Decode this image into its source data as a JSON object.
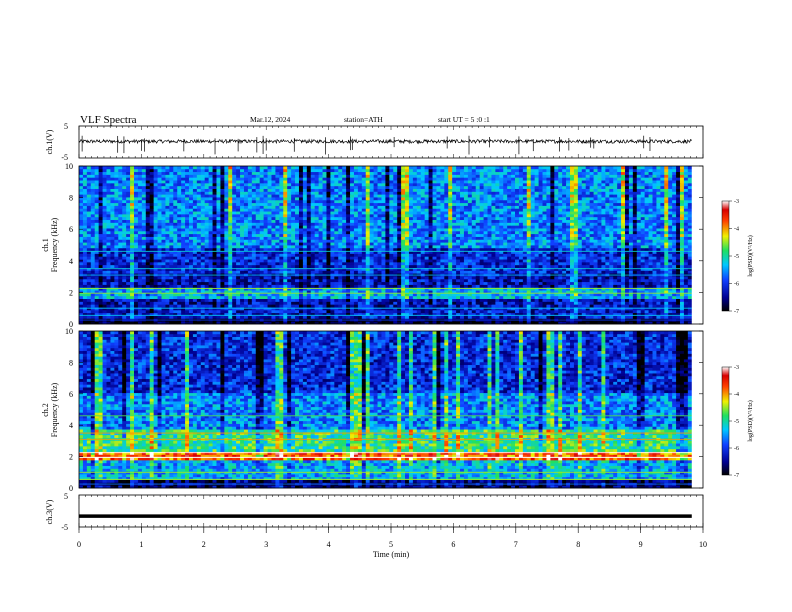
{
  "header": {
    "title": "VLF  Spectra",
    "date": "Mar.12, 2024",
    "station": "station=ATH",
    "start": "start  UT  =    5  :0  :1"
  },
  "chart_data": [
    {
      "type": "line",
      "id": "ch1-waveform",
      "ylabel": "ch.1(V)",
      "ylim": [
        -5,
        5
      ],
      "yticks": [
        "5",
        "-5"
      ],
      "xlim": [
        0,
        10
      ],
      "trace_baseline_v": 0.2,
      "trace_noise_v": 0.55,
      "spikes_min": [
        0.05,
        0.62,
        0.72,
        1.0,
        1.05,
        1.68,
        2.18,
        2.55,
        2.85,
        2.95,
        3.0,
        3.45,
        3.95,
        4.35,
        4.38,
        5.05,
        5.9,
        6.25,
        6.58,
        7.05,
        7.28,
        7.7,
        7.85,
        8.2,
        8.25,
        9.05,
        9.15
      ]
    },
    {
      "type": "heatmap",
      "id": "ch1-spectrogram",
      "ylabel": "ch.1\nFrequency  (kHz)",
      "ylim": [
        0,
        10
      ],
      "yticks": [
        "0",
        "2",
        "4",
        "6",
        "8",
        "10"
      ],
      "xlim": [
        0,
        9.82
      ],
      "colorbar": {
        "label": "log(PSD)(V²/Hz)",
        "range": [
          -7,
          -3
        ],
        "ticks": [
          "-3",
          "-4",
          "-5",
          "-6",
          "-7"
        ]
      },
      "bands_khz": [
        {
          "f": [
            0.0,
            0.4
          ],
          "level": -6.9
        },
        {
          "f": [
            0.4,
            1.0
          ],
          "level": -6.2
        },
        {
          "f": [
            1.0,
            1.6
          ],
          "level": -6.3
        },
        {
          "f": [
            1.6,
            2.3
          ],
          "level": -5.4
        },
        {
          "f": [
            2.3,
            3.2
          ],
          "level": -6.3
        },
        {
          "f": [
            3.2,
            4.8
          ],
          "level": -6.1
        },
        {
          "f": [
            4.8,
            10.0
          ],
          "level": -5.6
        }
      ]
    },
    {
      "type": "heatmap",
      "id": "ch2-spectrogram",
      "ylabel": "ch.2\nFrequency  (kHz)",
      "ylim": [
        0,
        10
      ],
      "yticks": [
        "0",
        "2",
        "4",
        "6",
        "8",
        "10"
      ],
      "xlim": [
        0,
        9.82
      ],
      "colorbar": {
        "label": "log(PSD)(V²/Hz)",
        "range": [
          -7,
          -3
        ],
        "ticks": [
          "-3",
          "-4",
          "-5",
          "-6",
          "-7"
        ]
      },
      "bands_khz": [
        {
          "f": [
            0.0,
            0.5
          ],
          "level": -6.6
        },
        {
          "f": [
            0.5,
            1.8
          ],
          "level": -5.4
        },
        {
          "f": [
            1.8,
            2.3
          ],
          "level": -3.8
        },
        {
          "f": [
            2.3,
            3.8
          ],
          "level": -4.9
        },
        {
          "f": [
            3.8,
            6.0
          ],
          "level": -5.6
        },
        {
          "f": [
            6.0,
            10.0
          ],
          "level": -6.1
        }
      ]
    },
    {
      "type": "line",
      "id": "ch3-waveform",
      "ylabel": "ch.3(V)",
      "ylim": [
        -5,
        5
      ],
      "yticks": [
        "5",
        "-5"
      ],
      "xlim": [
        0,
        10
      ],
      "trace_value_v": -1.6
    }
  ],
  "x_axis": {
    "label": "Time  (min)",
    "range": [
      0,
      10
    ],
    "ticks": [
      "0",
      "1",
      "2",
      "3",
      "4",
      "5",
      "6",
      "7",
      "8",
      "9",
      "10"
    ]
  }
}
